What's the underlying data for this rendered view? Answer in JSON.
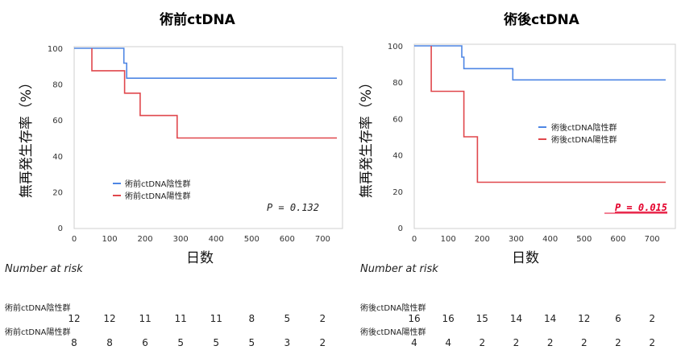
{
  "chart_data": [
    {
      "type": "line",
      "title": "術前ctDNA",
      "xlabel": "日数",
      "ylabel": "無再発生存率（%）",
      "xlim": [
        0,
        740
      ],
      "ylim": [
        0,
        100
      ],
      "xticks": [
        "0",
        "100",
        "200",
        "300",
        "400",
        "500",
        "600",
        "700"
      ],
      "yticks": [
        "0",
        "20",
        "40",
        "60",
        "80",
        "100"
      ],
      "grid": false,
      "legend_position": "lower-left",
      "p_value": "P = 0.132",
      "p_significant": false,
      "series": [
        {
          "name": "術前ctDNA陰性群",
          "color": "#4e86e4",
          "steps": [
            [
              0,
              100
            ],
            [
              140,
              100
            ],
            [
              140,
              91.7
            ],
            [
              148,
              91.7
            ],
            [
              148,
              83.3
            ],
            [
              740,
              83.3
            ]
          ]
        },
        {
          "name": "術前ctDNA陽性群",
          "color": "#e0474c",
          "steps": [
            [
              50,
              100
            ],
            [
              50,
              87.5
            ],
            [
              142,
              87.5
            ],
            [
              142,
              75
            ],
            [
              186,
              75
            ],
            [
              186,
              62.5
            ],
            [
              290,
              62.5
            ],
            [
              290,
              50
            ],
            [
              740,
              50
            ]
          ]
        }
      ],
      "risk_table": {
        "header": "Number at risk",
        "rows": [
          {
            "label": "術前ctDNA陰性群",
            "values": [
              "12",
              "12",
              "11",
              "11",
              "11",
              "8",
              "5",
              "2"
            ]
          },
          {
            "label": "術前ctDNA陽性群",
            "values": [
              "8",
              "8",
              "6",
              "5",
              "5",
              "5",
              "3",
              "2"
            ]
          }
        ]
      }
    },
    {
      "type": "line",
      "title": "術後ctDNA",
      "xlabel": "日数",
      "ylabel": "無再発生存率（%）",
      "xlim": [
        0,
        740
      ],
      "ylim": [
        0,
        100
      ],
      "xticks": [
        "0",
        "100",
        "200",
        "300",
        "400",
        "500",
        "600",
        "700"
      ],
      "yticks": [
        "0",
        "20",
        "40",
        "60",
        "80",
        "100"
      ],
      "grid": false,
      "legend_position": "center-right",
      "p_value": "P = 0.015",
      "p_significant": true,
      "series": [
        {
          "name": "術後ctDNA陰性群",
          "color": "#4e86e4",
          "steps": [
            [
              0,
              100
            ],
            [
              140,
              100
            ],
            [
              140,
              93.8
            ],
            [
              146,
              93.8
            ],
            [
              146,
              87.5
            ],
            [
              290,
              87.5
            ],
            [
              290,
              81.3
            ],
            [
              740,
              81.3
            ]
          ]
        },
        {
          "name": "術後ctDNA陽性群",
          "color": "#e0474c",
          "steps": [
            [
              50,
              100
            ],
            [
              50,
              75
            ],
            [
              146,
              75
            ],
            [
              146,
              50
            ],
            [
              186,
              50
            ],
            [
              186,
              25
            ],
            [
              740,
              25
            ]
          ]
        }
      ],
      "risk_table": {
        "header": "Number at risk",
        "rows": [
          {
            "label": "術後ctDNA陰性群",
            "values": [
              "16",
              "16",
              "15",
              "14",
              "14",
              "12",
              "6",
              "2"
            ]
          },
          {
            "label": "術後ctDNA陽性群",
            "values": [
              "4",
              "4",
              "2",
              "2",
              "2",
              "2",
              "2",
              "2"
            ]
          }
        ]
      }
    }
  ]
}
